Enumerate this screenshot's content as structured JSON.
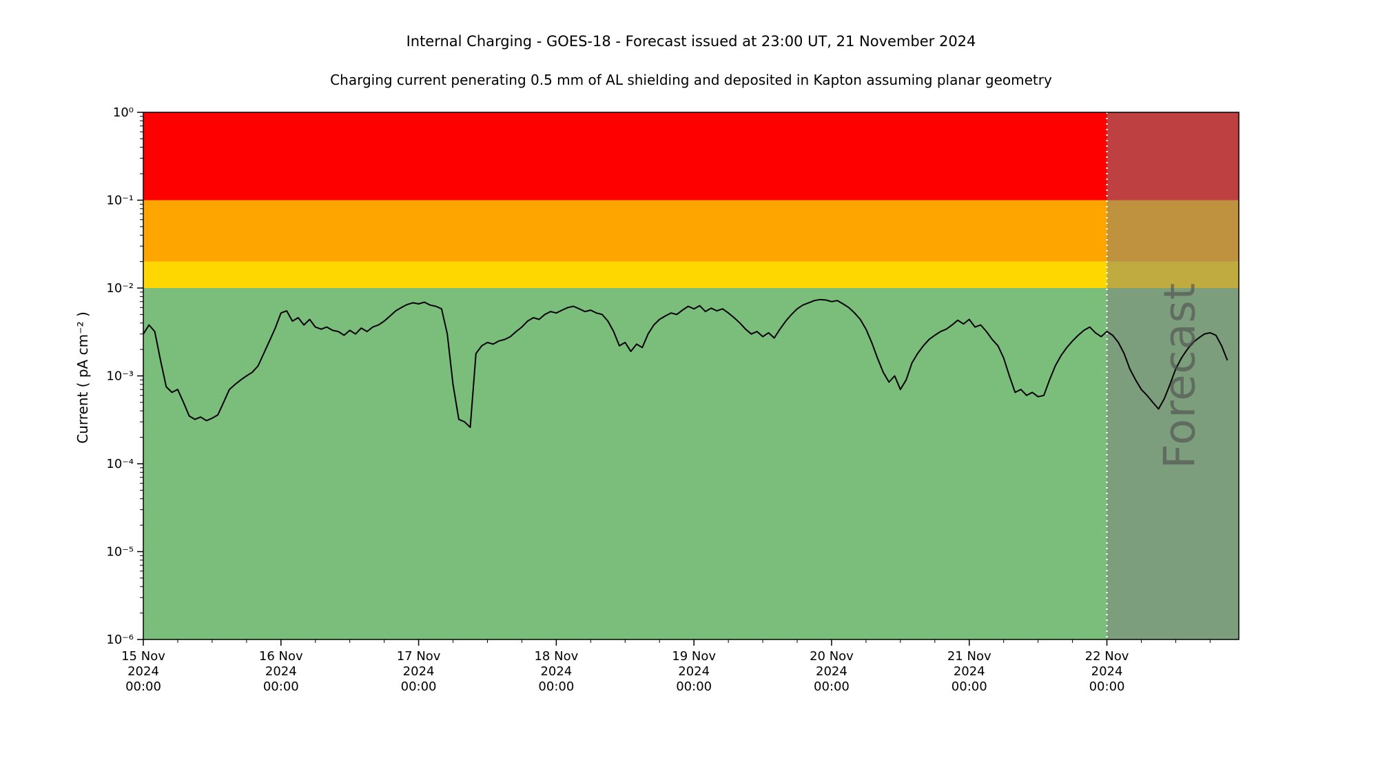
{
  "chart_data": {
    "type": "line",
    "title": "Internal Charging - GOES-18 - Forecast issued at 23:00 UT, 21 November 2024",
    "subtitle": "Charging current penerating 0.5 mm of AL shielding and deposited in Kapton assuming planar geometry",
    "xlabel": "",
    "ylabel": "Current ( pA cm⁻² )",
    "y_scale": "log",
    "ylim": [
      1e-06,
      1
    ],
    "grid": "off",
    "legend": "none",
    "x_hours_range": [
      0,
      191
    ],
    "x_epoch_label": "15 Nov 2024 00:00 UT",
    "x_ticks": [
      {
        "hour": 0,
        "lines": [
          "15 Nov",
          "2024",
          "00:00"
        ]
      },
      {
        "hour": 24,
        "lines": [
          "16 Nov",
          "2024",
          "00:00"
        ]
      },
      {
        "hour": 48,
        "lines": [
          "17 Nov",
          "2024",
          "00:00"
        ]
      },
      {
        "hour": 72,
        "lines": [
          "18 Nov",
          "2024",
          "00:00"
        ]
      },
      {
        "hour": 96,
        "lines": [
          "19 Nov",
          "2024",
          "00:00"
        ]
      },
      {
        "hour": 120,
        "lines": [
          "20 Nov",
          "2024",
          "00:00"
        ]
      },
      {
        "hour": 144,
        "lines": [
          "21 Nov",
          "2024",
          "00:00"
        ]
      },
      {
        "hour": 168,
        "lines": [
          "22 Nov",
          "2024",
          "00:00"
        ]
      }
    ],
    "y_ticks": [
      {
        "value": 1,
        "label": "10⁰"
      },
      {
        "value": 0.1,
        "label": "10⁻¹"
      },
      {
        "value": 0.01,
        "label": "10⁻²"
      },
      {
        "value": 0.001,
        "label": "10⁻³"
      },
      {
        "value": 0.0001,
        "label": "10⁻⁴"
      },
      {
        "value": 1e-05,
        "label": "10⁻⁵"
      },
      {
        "value": 1e-06,
        "label": "10⁻⁶"
      }
    ],
    "bands": [
      {
        "name": "red-alert",
        "from": 0.1,
        "to": 1,
        "color": "#ff0000"
      },
      {
        "name": "orange-warning",
        "from": 0.02,
        "to": 0.1,
        "color": "#ffa500"
      },
      {
        "name": "yellow-caution",
        "from": 0.01,
        "to": 0.02,
        "color": "#ffd700"
      },
      {
        "name": "green-nominal",
        "from": 1e-06,
        "to": 0.01,
        "color": "#7bbd7b"
      }
    ],
    "forecast": {
      "start_hour": 168,
      "label": "Forecast",
      "overlay_color": "rgba(128,128,128,0.5)",
      "divider_color": "#ffffff",
      "divider_style": "dotted"
    },
    "series": [
      {
        "name": "charging-current",
        "color": "#000000",
        "units": "pA cm⁻²",
        "points": [
          [
            0,
            0.003
          ],
          [
            1,
            0.0038
          ],
          [
            2,
            0.0032
          ],
          [
            3,
            0.0015
          ],
          [
            4,
            0.00075
          ],
          [
            5,
            0.00065
          ],
          [
            6,
            0.0007
          ],
          [
            7,
            0.0005
          ],
          [
            8,
            0.00035
          ],
          [
            9,
            0.00032
          ],
          [
            10,
            0.00034
          ],
          [
            11,
            0.00031
          ],
          [
            12,
            0.00033
          ],
          [
            13,
            0.00036
          ],
          [
            14,
            0.0005
          ],
          [
            15,
            0.0007
          ],
          [
            16,
            0.0008
          ],
          [
            17,
            0.0009
          ],
          [
            18,
            0.001
          ],
          [
            19,
            0.0011
          ],
          [
            20,
            0.0013
          ],
          [
            21,
            0.0018
          ],
          [
            22,
            0.0025
          ],
          [
            23,
            0.0035
          ],
          [
            24,
            0.0052
          ],
          [
            25,
            0.0055
          ],
          [
            26,
            0.0042
          ],
          [
            27,
            0.0046
          ],
          [
            28,
            0.0038
          ],
          [
            29,
            0.0044
          ],
          [
            30,
            0.0036
          ],
          [
            31,
            0.0034
          ],
          [
            32,
            0.0036
          ],
          [
            33,
            0.0033
          ],
          [
            34,
            0.0032
          ],
          [
            35,
            0.0029
          ],
          [
            36,
            0.0033
          ],
          [
            37,
            0.003
          ],
          [
            38,
            0.0035
          ],
          [
            39,
            0.0032
          ],
          [
            40,
            0.0036
          ],
          [
            41,
            0.0038
          ],
          [
            42,
            0.0042
          ],
          [
            43,
            0.0048
          ],
          [
            44,
            0.0055
          ],
          [
            45,
            0.006
          ],
          [
            46,
            0.0065
          ],
          [
            47,
            0.0068
          ],
          [
            48,
            0.0066
          ],
          [
            49,
            0.0069
          ],
          [
            50,
            0.0064
          ],
          [
            51,
            0.0062
          ],
          [
            52,
            0.0058
          ],
          [
            53,
            0.003
          ],
          [
            54,
            0.0008
          ],
          [
            55,
            0.00032
          ],
          [
            56,
            0.0003
          ],
          [
            57,
            0.00026
          ],
          [
            58,
            0.0018
          ],
          [
            59,
            0.0022
          ],
          [
            60,
            0.0024
          ],
          [
            61,
            0.0023
          ],
          [
            62,
            0.0025
          ],
          [
            63,
            0.0026
          ],
          [
            64,
            0.0028
          ],
          [
            65,
            0.0032
          ],
          [
            66,
            0.0036
          ],
          [
            67,
            0.0042
          ],
          [
            68,
            0.0046
          ],
          [
            69,
            0.0044
          ],
          [
            70,
            0.005
          ],
          [
            71,
            0.0054
          ],
          [
            72,
            0.0052
          ],
          [
            73,
            0.0056
          ],
          [
            74,
            0.006
          ],
          [
            75,
            0.0062
          ],
          [
            76,
            0.0058
          ],
          [
            77,
            0.0054
          ],
          [
            78,
            0.0056
          ],
          [
            79,
            0.0052
          ],
          [
            80,
            0.005
          ],
          [
            81,
            0.0042
          ],
          [
            82,
            0.0032
          ],
          [
            83,
            0.0022
          ],
          [
            84,
            0.0024
          ],
          [
            85,
            0.0019
          ],
          [
            86,
            0.0023
          ],
          [
            87,
            0.0021
          ],
          [
            88,
            0.003
          ],
          [
            89,
            0.0038
          ],
          [
            90,
            0.0044
          ],
          [
            91,
            0.0048
          ],
          [
            92,
            0.0052
          ],
          [
            93,
            0.005
          ],
          [
            94,
            0.0056
          ],
          [
            95,
            0.0062
          ],
          [
            96,
            0.0058
          ],
          [
            97,
            0.0063
          ],
          [
            98,
            0.0054
          ],
          [
            99,
            0.0059
          ],
          [
            100,
            0.0055
          ],
          [
            101,
            0.0058
          ],
          [
            102,
            0.0052
          ],
          [
            103,
            0.0046
          ],
          [
            104,
            0.004
          ],
          [
            105,
            0.0034
          ],
          [
            106,
            0.003
          ],
          [
            107,
            0.0032
          ],
          [
            108,
            0.0028
          ],
          [
            109,
            0.0031
          ],
          [
            110,
            0.0027
          ],
          [
            111,
            0.0034
          ],
          [
            112,
            0.0042
          ],
          [
            113,
            0.005
          ],
          [
            114,
            0.0058
          ],
          [
            115,
            0.0064
          ],
          [
            116,
            0.0068
          ],
          [
            117,
            0.0072
          ],
          [
            118,
            0.0074
          ],
          [
            119,
            0.0073
          ],
          [
            120,
            0.007
          ],
          [
            121,
            0.0072
          ],
          [
            122,
            0.0066
          ],
          [
            123,
            0.006
          ],
          [
            124,
            0.0052
          ],
          [
            125,
            0.0044
          ],
          [
            126,
            0.0034
          ],
          [
            127,
            0.0024
          ],
          [
            128,
            0.0016
          ],
          [
            129,
            0.0011
          ],
          [
            130,
            0.00085
          ],
          [
            131,
            0.001
          ],
          [
            132,
            0.0007
          ],
          [
            133,
            0.0009
          ],
          [
            134,
            0.0014
          ],
          [
            135,
            0.0018
          ],
          [
            136,
            0.0022
          ],
          [
            137,
            0.0026
          ],
          [
            138,
            0.0029
          ],
          [
            139,
            0.0032
          ],
          [
            140,
            0.0034
          ],
          [
            141,
            0.0038
          ],
          [
            142,
            0.0043
          ],
          [
            143,
            0.0039
          ],
          [
            144,
            0.0044
          ],
          [
            145,
            0.0036
          ],
          [
            146,
            0.0038
          ],
          [
            147,
            0.0032
          ],
          [
            148,
            0.0026
          ],
          [
            149,
            0.0022
          ],
          [
            150,
            0.0016
          ],
          [
            151,
            0.001
          ],
          [
            152,
            0.00065
          ],
          [
            153,
            0.0007
          ],
          [
            154,
            0.0006
          ],
          [
            155,
            0.00065
          ],
          [
            156,
            0.00058
          ],
          [
            157,
            0.0006
          ],
          [
            158,
            0.0009
          ],
          [
            159,
            0.0013
          ],
          [
            160,
            0.0017
          ],
          [
            161,
            0.0021
          ],
          [
            162,
            0.0025
          ],
          [
            163,
            0.0029
          ],
          [
            164,
            0.0033
          ],
          [
            165,
            0.0036
          ],
          [
            166,
            0.0031
          ],
          [
            167,
            0.0028
          ],
          [
            168,
            0.0032
          ],
          [
            169,
            0.0029
          ],
          [
            170,
            0.0024
          ],
          [
            171,
            0.0018
          ],
          [
            172,
            0.0012
          ],
          [
            173,
            0.0009
          ],
          [
            174,
            0.0007
          ],
          [
            175,
            0.0006
          ],
          [
            176,
            0.0005
          ],
          [
            177,
            0.00042
          ],
          [
            178,
            0.00055
          ],
          [
            179,
            0.0008
          ],
          [
            180,
            0.0012
          ],
          [
            181,
            0.0016
          ],
          [
            182,
            0.002
          ],
          [
            183,
            0.0024
          ],
          [
            184,
            0.0027
          ],
          [
            185,
            0.003
          ],
          [
            186,
            0.0031
          ],
          [
            187,
            0.0029
          ],
          [
            188,
            0.0022
          ],
          [
            189,
            0.0015
          ]
        ]
      }
    ]
  }
}
